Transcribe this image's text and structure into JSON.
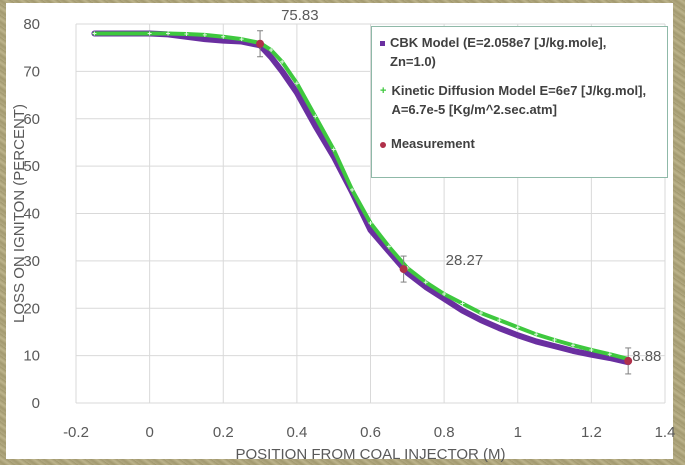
{
  "chart_data": {
    "type": "scatter",
    "xlabel": "POSITION FROM COAL INJECTOR (M)",
    "ylabel": "LOSS ON IGNITON (PERCENT)",
    "xlim": [
      -0.2,
      1.4
    ],
    "ylim": [
      0,
      80
    ],
    "x_ticks": [
      "-0.2",
      "0",
      "0.2",
      "0.4",
      "0.6",
      "0.8",
      "1",
      "1.2",
      "1.4"
    ],
    "y_ticks": [
      "0",
      "10",
      "20",
      "30",
      "40",
      "50",
      "60",
      "70",
      "80"
    ],
    "grid": true,
    "legend_position": "top-right",
    "series": [
      {
        "name": "CBK Model (E=2.058e7 [J/kg.mole], Zn=1.0)",
        "color": "#6a2fa0",
        "marker": "square",
        "x": [
          -0.15,
          0.0,
          0.05,
          0.1,
          0.15,
          0.2,
          0.25,
          0.3,
          0.33,
          0.36,
          0.4,
          0.45,
          0.5,
          0.55,
          0.6,
          0.65,
          0.7,
          0.75,
          0.8,
          0.85,
          0.9,
          0.95,
          1.0,
          1.05,
          1.1,
          1.15,
          1.2,
          1.25,
          1.3
        ],
        "y": [
          78,
          78,
          77.8,
          77.3,
          76.8,
          76.5,
          76.3,
          75.5,
          73,
          70,
          65.5,
          58.5,
          52,
          44.5,
          36.5,
          32,
          27.5,
          24.5,
          22,
          19.5,
          17.5,
          15.8,
          14.3,
          13,
          12,
          11,
          10.2,
          9.5,
          8.6
        ]
      },
      {
        "name": "Kinetic Diffusion Model  E=6e7 [J/kg.mol], A=6.7e-5 [Kg/m^2.sec.atm]",
        "color": "#3ec83e",
        "marker": "plus",
        "x": [
          -0.15,
          0.0,
          0.05,
          0.1,
          0.15,
          0.2,
          0.25,
          0.3,
          0.33,
          0.36,
          0.4,
          0.45,
          0.5,
          0.55,
          0.6,
          0.65,
          0.7,
          0.75,
          0.8,
          0.85,
          0.9,
          0.95,
          1.0,
          1.05,
          1.1,
          1.15,
          1.2,
          1.25,
          1.3
        ],
        "y": [
          78,
          78,
          78,
          77.9,
          77.7,
          77.3,
          76.8,
          76,
          74.5,
          72,
          67.5,
          60.5,
          53.5,
          45,
          38,
          33,
          28.5,
          25.5,
          23,
          21,
          19,
          17.5,
          16,
          14.5,
          13.3,
          12.2,
          11.2,
          10.3,
          9.3
        ]
      },
      {
        "name": "Measurement",
        "color": "#b0304a",
        "marker": "circle",
        "x": [
          0.3,
          0.69,
          1.3
        ],
        "y": [
          75.83,
          28.27,
          8.88
        ],
        "labels": [
          "75.83",
          "28.27",
          "8.88"
        ]
      }
    ]
  }
}
